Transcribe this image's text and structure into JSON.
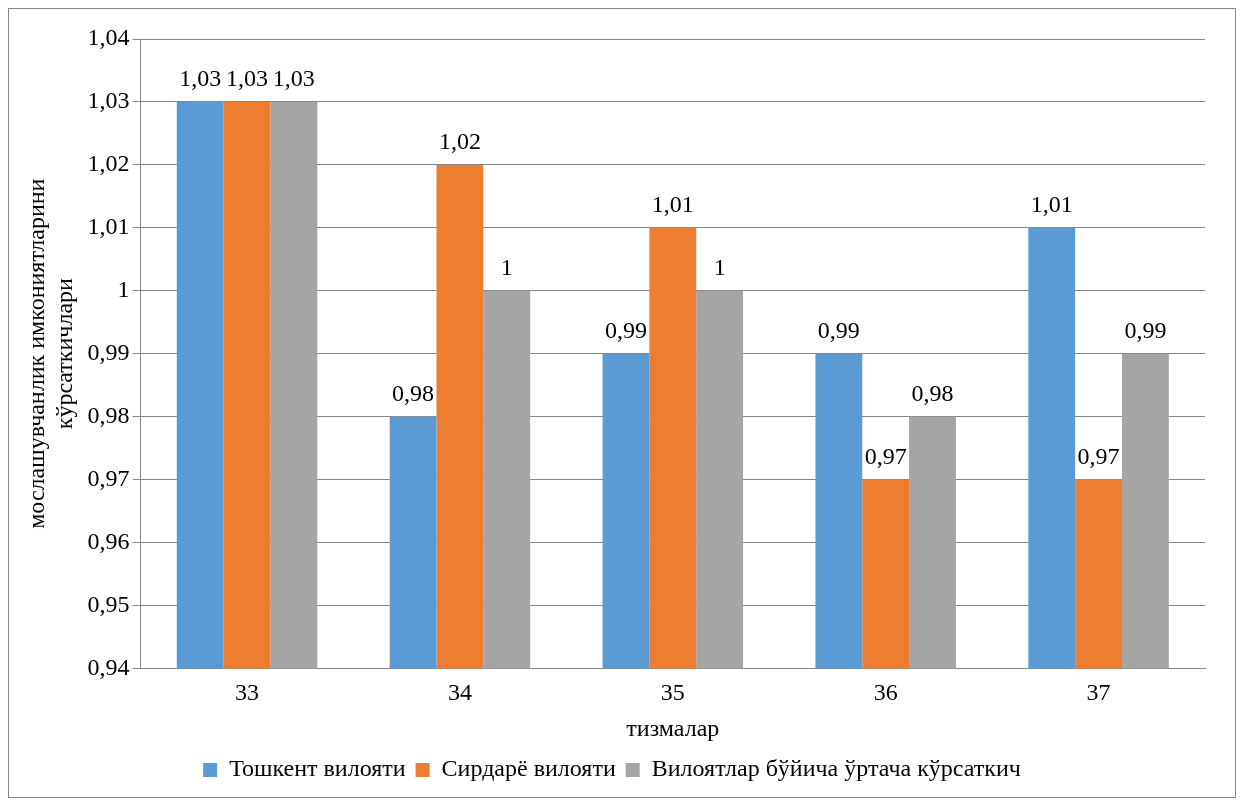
{
  "chart_data": {
    "type": "bar",
    "xlabel": "тизмалар",
    "ylabel": "мослашувчанлик имкониятларини\nкўрсаткичлари",
    "categories": [
      "33",
      "34",
      "35",
      "36",
      "37"
    ],
    "series": [
      {
        "name": "Тошкент вилояти",
        "color": "#5b9bd5",
        "values": [
          1.03,
          0.98,
          0.99,
          0.99,
          1.01
        ],
        "value_labels": [
          "1,03",
          "0,98",
          "0,99",
          "0,99",
          "1,01"
        ]
      },
      {
        "name": "Сирдарё вилояти",
        "color": "#ed7d31",
        "values": [
          1.03,
          1.02,
          1.01,
          0.97,
          0.97
        ],
        "value_labels": [
          "1,03",
          "1,02",
          "1,01",
          "0,97",
          "0,97"
        ]
      },
      {
        "name": "Вилоятлар бўйича ўртача кўрсаткич",
        "color": "#a5a5a5",
        "values": [
          1.03,
          1,
          1,
          0.98,
          0.99
        ],
        "value_labels": [
          "1,03",
          "1",
          "1",
          "0,98",
          "0,99"
        ]
      }
    ],
    "ylim": [
      0.94,
      1.04
    ],
    "yticks": [
      {
        "value": 0.94,
        "label": "0,94"
      },
      {
        "value": 0.95,
        "label": "0,95"
      },
      {
        "value": 0.96,
        "label": "0,96"
      },
      {
        "value": 0.97,
        "label": "0,97"
      },
      {
        "value": 0.98,
        "label": "0,98"
      },
      {
        "value": 0.99,
        "label": "0,99"
      },
      1,
      {
        "value": 1.01,
        "label": "1,01"
      },
      {
        "value": 1.02,
        "label": "1,02"
      },
      {
        "value": 1.03,
        "label": "1,03"
      },
      {
        "value": 1.04,
        "label": "1,04"
      }
    ],
    "grid": "y",
    "legend": "bottom"
  }
}
